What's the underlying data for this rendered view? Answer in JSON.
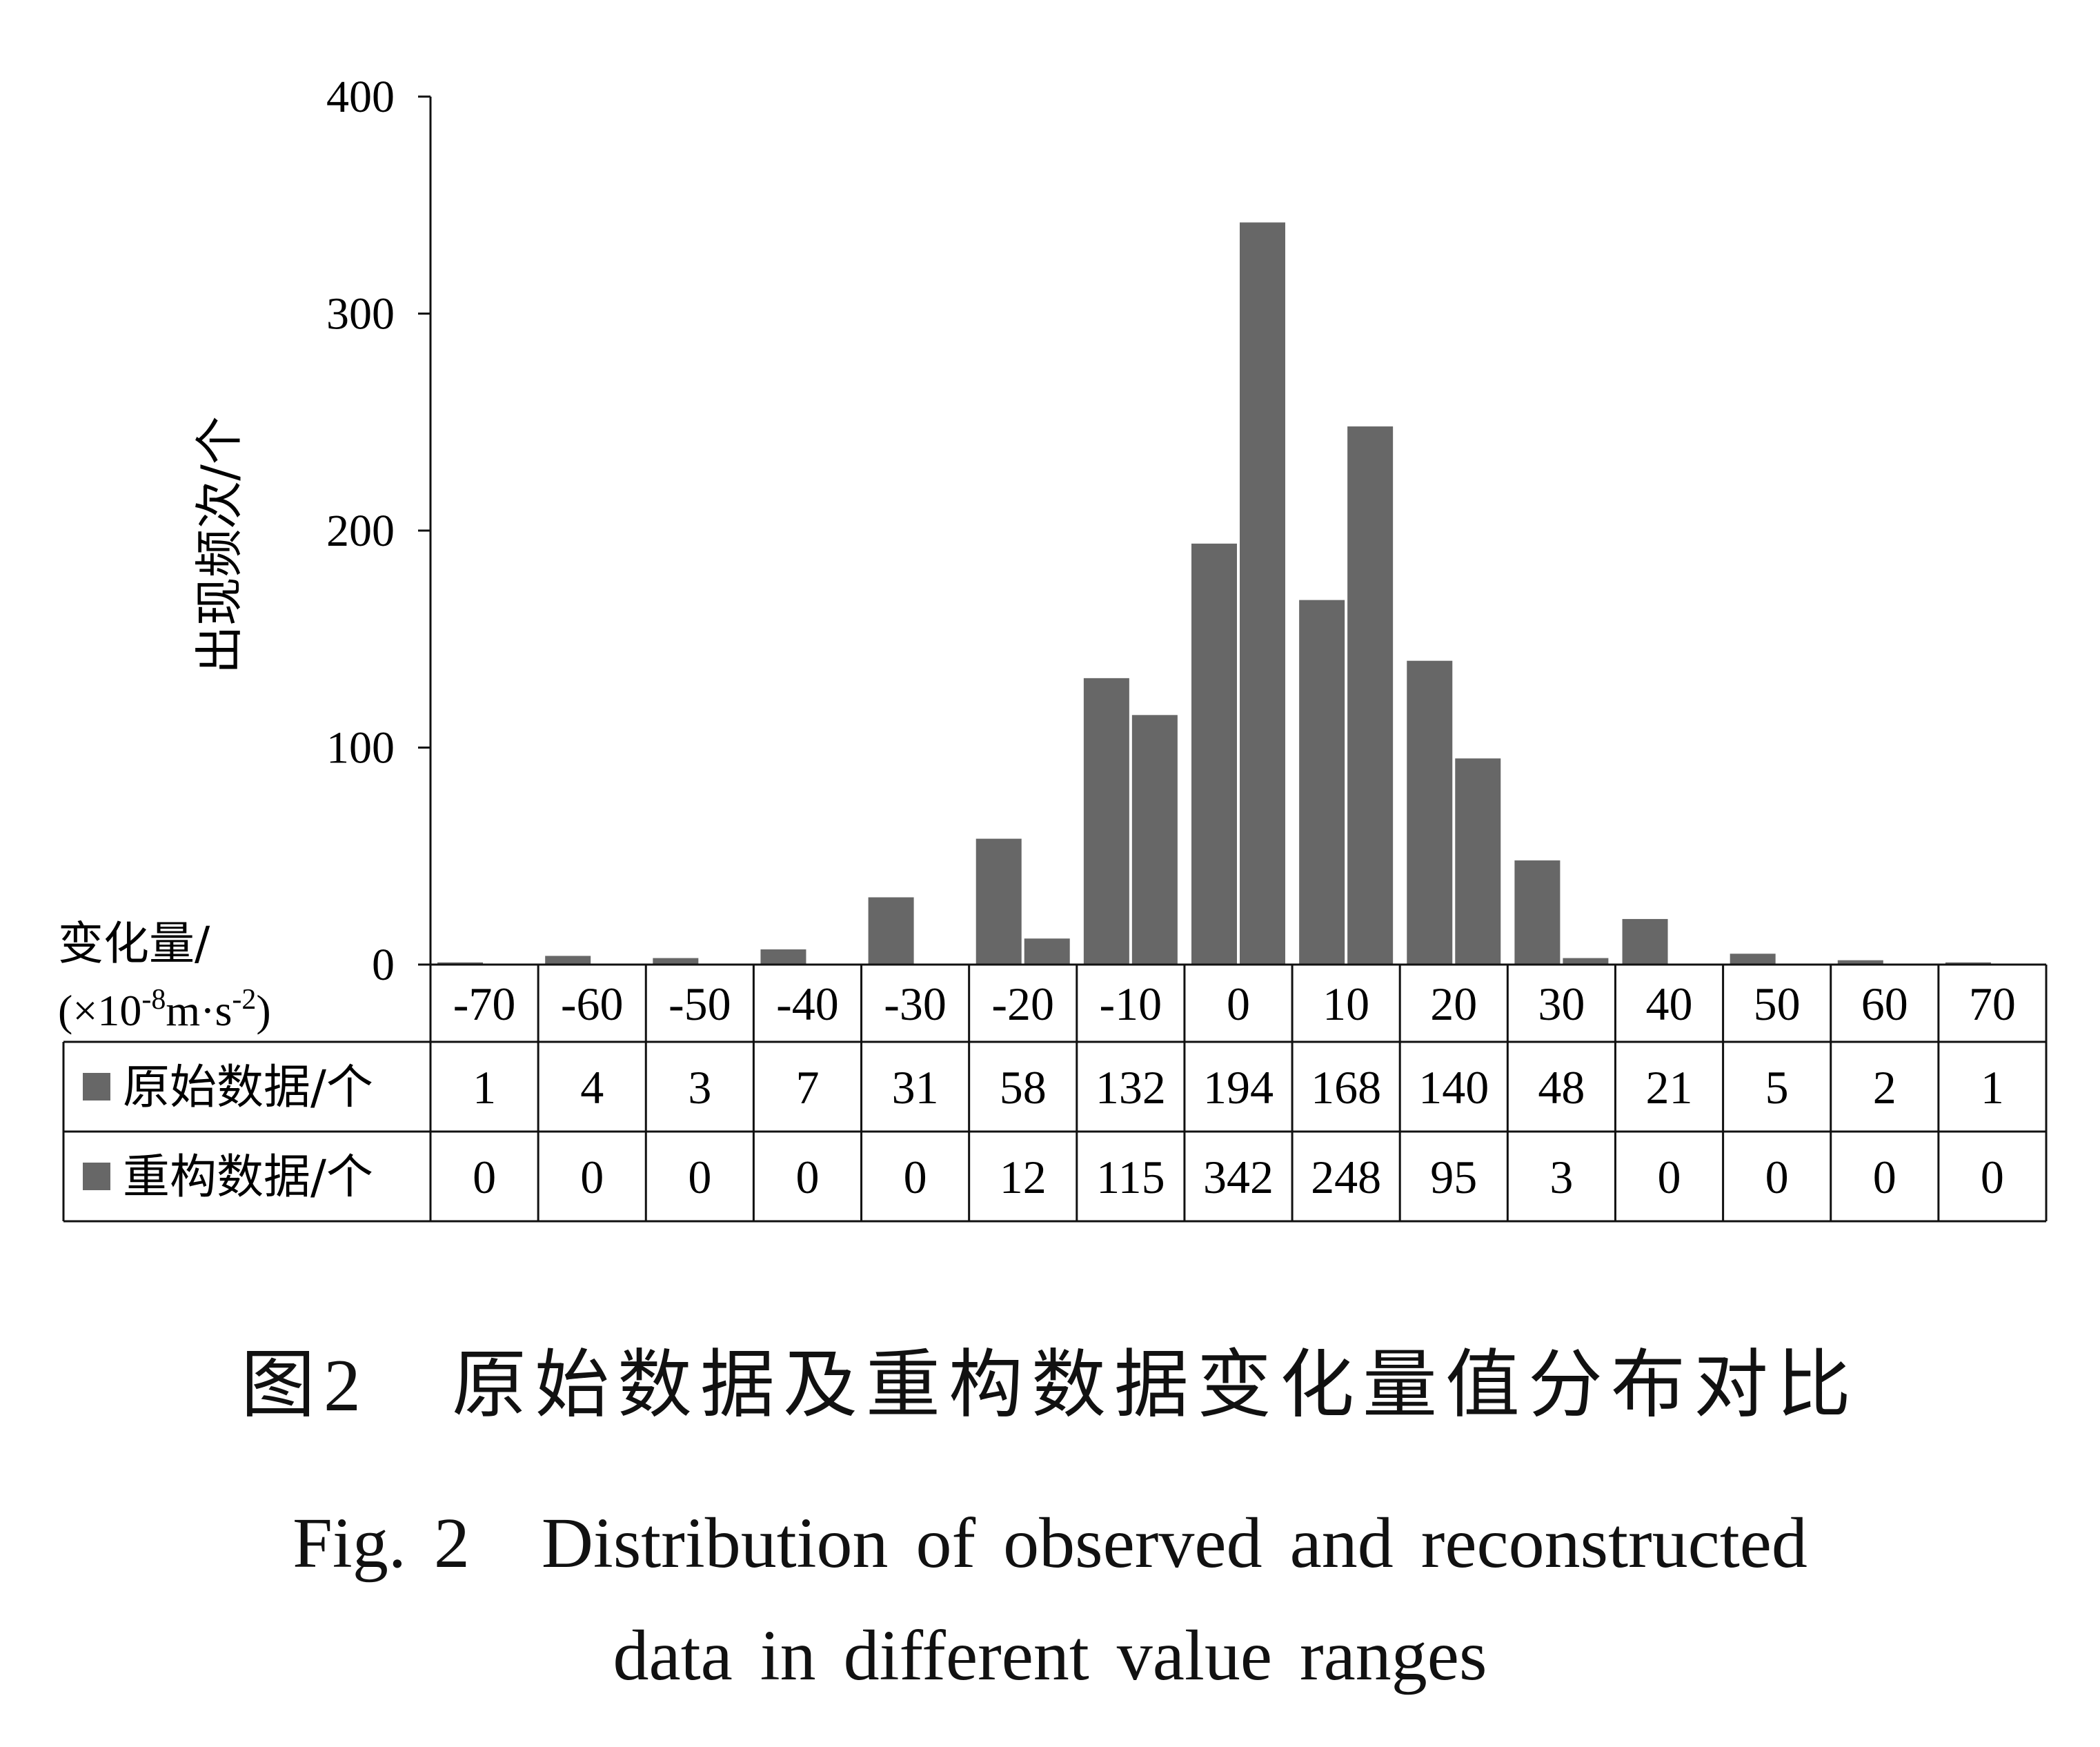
{
  "chart_data": {
    "type": "bar",
    "ylabel": "出现频次/个",
    "xlabel_line1": "变化量/",
    "xlabel_line2_prefix": "(×10",
    "xlabel_line2_sup1": "-8",
    "xlabel_line2_mid": "m·s",
    "xlabel_line2_sup2": "-2",
    "xlabel_line2_suffix": ")",
    "ylim": [
      0,
      400
    ],
    "yticks": [
      "0",
      "100",
      "200",
      "300",
      "400"
    ],
    "categories": [
      "-70",
      "-60",
      "-50",
      "-40",
      "-30",
      "-20",
      "-10",
      "0",
      "10",
      "20",
      "30",
      "40",
      "50",
      "60",
      "70"
    ],
    "series": [
      {
        "name": "原始数据/个",
        "color": "#676767",
        "values": [
          1,
          4,
          3,
          7,
          31,
          58,
          132,
          194,
          168,
          140,
          48,
          21,
          5,
          2,
          1
        ]
      },
      {
        "name": "重构数据/个",
        "color": "#676767",
        "values": [
          0,
          0,
          0,
          0,
          0,
          12,
          115,
          342,
          248,
          95,
          3,
          0,
          0,
          0,
          0
        ]
      }
    ],
    "legend": "data-table-rows",
    "grid": false
  },
  "caption": {
    "cn": "图2　原始数据及重构数据变化量值分布对比",
    "en_line1": "Fig. 2　Distribution of observed and reconstructed",
    "en_line2": "data in different value ranges"
  }
}
